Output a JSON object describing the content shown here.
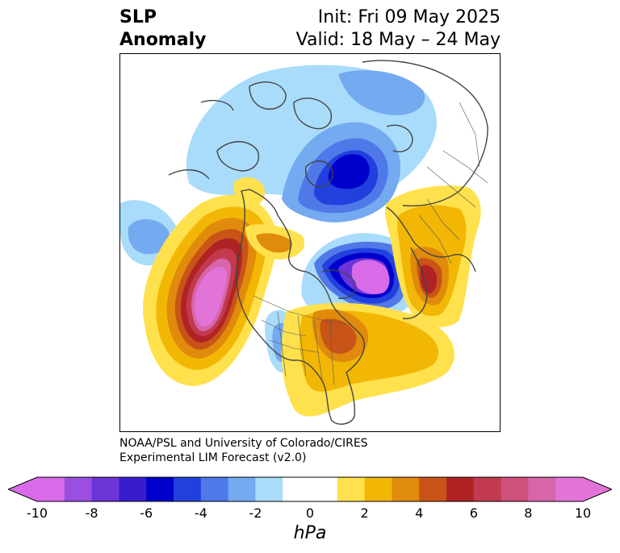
{
  "title": {
    "left_line1": "SLP",
    "left_line2": "Anomaly",
    "right_line1": "Init: Fri 09 May 2025",
    "right_line2": "Valid: 18 May – 24 May"
  },
  "credit": {
    "line1": "NOAA/PSL and University of Colorado/CIRES",
    "line2": "Experimental LIM Forecast (v2.0)"
  },
  "colorbar": {
    "units": "hPa",
    "tick_labels": [
      "-10",
      "-8",
      "-6",
      "-4",
      "-2",
      "0",
      "2",
      "4",
      "6",
      "8",
      "10"
    ],
    "colors": [
      "#d96be8",
      "#9b4fe0",
      "#6b35d8",
      "#3a1ccf",
      "#0000cc",
      "#2240dd",
      "#4f78e8",
      "#74aaf0",
      "#a9dcfb",
      "#ffffff",
      "#ffffff",
      "#ffe14d",
      "#f2b705",
      "#e08b0b",
      "#c85418",
      "#b02324",
      "#c13a4e",
      "#cf4f7d",
      "#d865aa",
      "#e274d8"
    ],
    "extend_low_color": "#d96be8",
    "extend_high_color": "#e274d8"
  },
  "map": {
    "projection": "polar stereographic",
    "features": [
      "SLP anomaly shading",
      "coastlines",
      "country borders",
      "state borders"
    ]
  }
}
